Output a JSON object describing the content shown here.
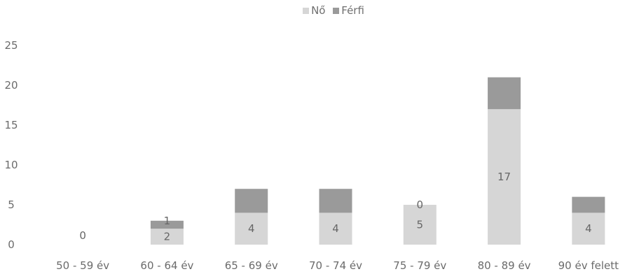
{
  "chart_data": {
    "type": "bar",
    "stacked": true,
    "categories": [
      "50 - 59 év",
      "60 - 64 év",
      "65 - 69 év",
      "70 - 74 év",
      "75 - 79 év",
      "80 - 89 év",
      "90 év felett"
    ],
    "series": [
      {
        "name": "Nő",
        "values": [
          0,
          2,
          4,
          4,
          5,
          17,
          4
        ],
        "color": "#d6d6d6",
        "labels": [
          "0",
          "2",
          "4",
          "4",
          "5",
          "17",
          "4"
        ]
      },
      {
        "name": "Férfi",
        "values": [
          0,
          1,
          3,
          3,
          0,
          4,
          2
        ],
        "color": "#9a9a9a",
        "labels": [
          "",
          "1",
          "",
          "",
          "0",
          "",
          ""
        ]
      }
    ],
    "yticks": [
      "0",
      "5",
      "10",
      "15",
      "20",
      "25"
    ],
    "ylim": [
      0,
      25
    ],
    "grid": false,
    "legend_position": "top-center",
    "title": "",
    "xlabel": "",
    "ylabel": ""
  }
}
